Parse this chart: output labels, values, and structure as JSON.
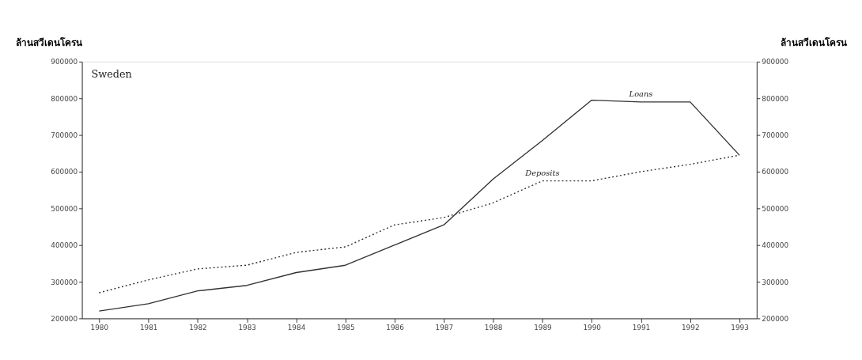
{
  "chart_data": {
    "type": "line",
    "ylabel": "ล้านสวีเดนโครน",
    "y2label": "ล้านสวีเดนโครน",
    "annotations": [
      "Sweden"
    ],
    "categories": [
      "1980",
      "1981",
      "1982",
      "1983",
      "1984",
      "1985",
      "1986",
      "1987",
      "1988",
      "1989",
      "1990",
      "1991",
      "1992",
      "1993"
    ],
    "series": [
      {
        "name": "Loans",
        "color": "#333333",
        "line_style": "solid",
        "values": [
          220000,
          240000,
          275000,
          290000,
          325000,
          345000,
          400000,
          455000,
          580000,
          685000,
          795000,
          790000,
          790000,
          645000
        ]
      },
      {
        "name": "Deposits",
        "color": "#333333",
        "line_style": "dotted",
        "values": [
          270000,
          305000,
          335000,
          345000,
          380000,
          395000,
          455000,
          475000,
          515000,
          575000,
          575000,
          600000,
          620000,
          645000
        ]
      }
    ],
    "ylim": [
      200000,
      900000
    ],
    "yticks": [
      200000,
      300000,
      400000,
      500000,
      600000,
      700000,
      800000,
      900000
    ],
    "y2lim": [
      200000,
      900000
    ],
    "y2ticks": [
      200000,
      300000,
      400000,
      500000,
      600000,
      700000,
      800000,
      900000
    ],
    "grid": false,
    "marker": "none"
  }
}
